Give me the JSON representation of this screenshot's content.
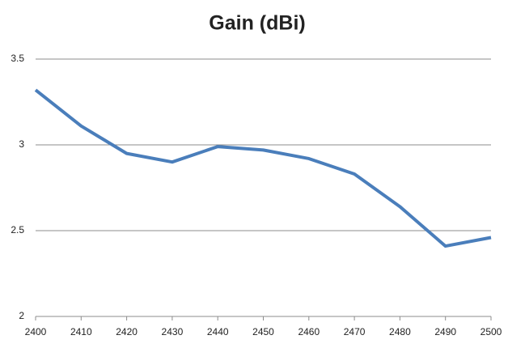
{
  "chart_data": {
    "type": "line",
    "title": "Gain (dBi)",
    "x": [
      2400,
      2410,
      2420,
      2430,
      2440,
      2450,
      2460,
      2470,
      2480,
      2490,
      2500
    ],
    "series": [
      {
        "name": "Gain",
        "color": "#4a7ebb",
        "values": [
          3.32,
          3.11,
          2.95,
          2.9,
          2.99,
          2.97,
          2.92,
          2.83,
          2.64,
          2.41,
          2.46
        ]
      }
    ],
    "xlim": [
      2400,
      2500
    ],
    "xticks": [
      2400,
      2410,
      2420,
      2430,
      2440,
      2450,
      2460,
      2470,
      2480,
      2490,
      2500
    ],
    "ylim": [
      2,
      3.5
    ],
    "yticks": [
      2,
      2.5,
      3,
      3.5
    ],
    "grid": true
  }
}
